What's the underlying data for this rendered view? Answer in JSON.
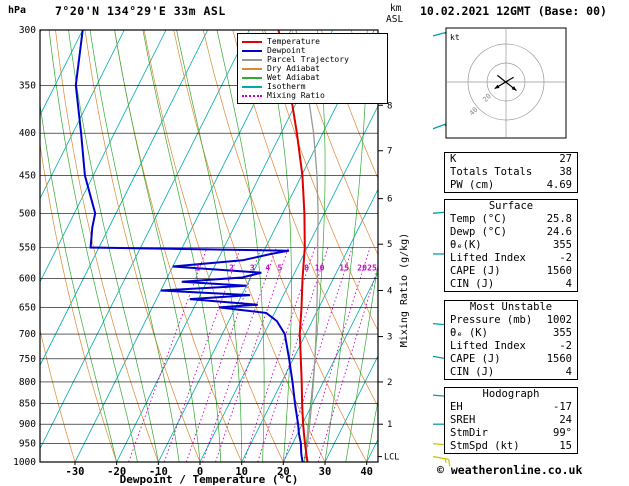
{
  "header": {
    "pressure_unit": "hPa",
    "station": "7°20'N 134°29'E 33m ASL",
    "altitude_km": "km",
    "altitude_asl": "ASL",
    "date": "10.02.2021 12GMT (Base: 00)"
  },
  "axis": {
    "x_title": "Dewpoint / Temperature (°C)",
    "right_title": "Mixing Ratio (g/kg)",
    "lcl_label": "LCL"
  },
  "colors": {
    "temperature": "#dd0000",
    "dewpoint": "#0000cc",
    "parcel": "#999999",
    "dry_adiabat": "#dd8833",
    "wet_adiabat": "#33aa33",
    "isotherm": "#00aaaa",
    "mixing_ratio": "#cc00cc",
    "barb_upper": "#00a0a0",
    "barb_lower": "#c8c800",
    "grid": "#000000"
  },
  "legend": [
    {
      "label": "Temperature",
      "color": "temperature",
      "dashed": false
    },
    {
      "label": "Dewpoint",
      "color": "dewpoint",
      "dashed": false
    },
    {
      "label": "Parcel Trajectory",
      "color": "parcel",
      "dashed": false
    },
    {
      "label": "Dry Adiabat",
      "color": "dry_adiabat",
      "dashed": false
    },
    {
      "label": "Wet Adiabat",
      "color": "wet_adiabat",
      "dashed": false
    },
    {
      "label": "Isotherm",
      "color": "isotherm",
      "dashed": false
    },
    {
      "label": "Mixing Ratio",
      "color": "mixing_ratio",
      "dashed": true
    }
  ],
  "chart_data": {
    "type": "line",
    "title": "Skew-T log-P sounding",
    "x_axis": {
      "label": "Dewpoint / Temperature (°C)",
      "ticks": [
        -30,
        -20,
        -10,
        0,
        10,
        20,
        30,
        40
      ],
      "range": [
        -40,
        43
      ]
    },
    "y_axis": {
      "label": "hPa",
      "scale": "log",
      "range": [
        300,
        1000
      ],
      "ticks": [
        300,
        350,
        400,
        450,
        500,
        550,
        600,
        650,
        700,
        750,
        800,
        850,
        900,
        950,
        1000
      ]
    },
    "km_ticks": [
      {
        "km": 1,
        "p": 900
      },
      {
        "km": 2,
        "p": 800
      },
      {
        "km": 3,
        "p": 705
      },
      {
        "km": 4,
        "p": 620
      },
      {
        "km": 5,
        "p": 545
      },
      {
        "km": 6,
        "p": 480
      },
      {
        "km": 7,
        "p": 420
      },
      {
        "km": 8,
        "p": 370
      }
    ],
    "mixing_ratio_lines": [
      1,
      2,
      3,
      4,
      5,
      8,
      10,
      15,
      20,
      25
    ],
    "lcl_pressure": 985,
    "series": [
      {
        "name": "Parcel Trajectory",
        "color": "parcel",
        "width": 1.3,
        "points": [
          [
            1000,
            25.8
          ],
          [
            985,
            24.6
          ],
          [
            950,
            23.6
          ],
          [
            900,
            21.8
          ],
          [
            850,
            19.8
          ],
          [
            800,
            17.6
          ],
          [
            750,
            15.2
          ],
          [
            700,
            12.5
          ],
          [
            650,
            9.5
          ],
          [
            600,
            6.2
          ],
          [
            550,
            2.5
          ],
          [
            500,
            -1.5
          ],
          [
            450,
            -6.3
          ],
          [
            400,
            -12.2
          ],
          [
            350,
            -19.6
          ],
          [
            300,
            -28.8
          ]
        ]
      },
      {
        "name": "Temperature",
        "color": "temperature",
        "width": 2,
        "points": [
          [
            1000,
            25.8
          ],
          [
            975,
            24.4
          ],
          [
            950,
            23.0
          ],
          [
            925,
            21.6
          ],
          [
            900,
            20.2
          ],
          [
            850,
            17.5
          ],
          [
            800,
            14.8
          ],
          [
            750,
            11.8
          ],
          [
            700,
            8.6
          ],
          [
            650,
            5.8
          ],
          [
            600,
            2.6
          ],
          [
            550,
            -0.6
          ],
          [
            500,
            -4.8
          ],
          [
            450,
            -9.8
          ],
          [
            400,
            -16.2
          ],
          [
            350,
            -23.8
          ],
          [
            300,
            -33.0
          ]
        ]
      },
      {
        "name": "Dewpoint",
        "color": "dewpoint",
        "width": 2,
        "points": [
          [
            1000,
            24.6
          ],
          [
            975,
            23.2
          ],
          [
            950,
            22.0
          ],
          [
            925,
            20.4
          ],
          [
            900,
            19.0
          ],
          [
            850,
            15.8
          ],
          [
            800,
            12.6
          ],
          [
            750,
            9.0
          ],
          [
            700,
            5.0
          ],
          [
            675,
            1.5
          ],
          [
            660,
            -2.0
          ],
          [
            650,
            -14.0
          ],
          [
            645,
            -5.0
          ],
          [
            635,
            -22.0
          ],
          [
            628,
            -8.0
          ],
          [
            620,
            -30.0
          ],
          [
            612,
            -10.0
          ],
          [
            605,
            -26.0
          ],
          [
            598,
            -12.0
          ],
          [
            590,
            -8.0
          ],
          [
            580,
            -30.0
          ],
          [
            570,
            -14.0
          ],
          [
            560,
            -8.0
          ],
          [
            555,
            -4.0
          ],
          [
            550,
            -52.0
          ],
          [
            520,
            -54.0
          ],
          [
            500,
            -55.0
          ],
          [
            450,
            -62.0
          ],
          [
            400,
            -68.0
          ],
          [
            350,
            -75.0
          ],
          [
            300,
            -80.0
          ]
        ]
      }
    ],
    "wind_barbs": [
      {
        "p": 305,
        "dir": 75,
        "spd": 20,
        "c": "upper"
      },
      {
        "p": 395,
        "dir": 70,
        "spd": 15,
        "c": "upper"
      },
      {
        "p": 500,
        "dir": 85,
        "spd": 10,
        "c": "upper"
      },
      {
        "p": 560,
        "dir": 90,
        "spd": 10,
        "c": "upper"
      },
      {
        "p": 680,
        "dir": 95,
        "spd": 10,
        "c": "upper"
      },
      {
        "p": 745,
        "dir": 100,
        "spd": 10,
        "c": "upper"
      },
      {
        "p": 830,
        "dir": 95,
        "spd": 15,
        "c": "upper"
      },
      {
        "p": 900,
        "dir": 90,
        "spd": 15,
        "c": "upper"
      },
      {
        "p": 950,
        "dir": 95,
        "spd": 10,
        "c": "lower"
      },
      {
        "p": 985,
        "dir": 100,
        "spd": 15,
        "c": "lower"
      }
    ],
    "hodograph": {
      "unit": "kt",
      "rings": [
        20,
        40
      ],
      "ring_labels": [
        "20",
        "40"
      ],
      "arrows": [
        {
          "from": [
            -9,
            7
          ],
          "to": [
            11,
            -9
          ]
        },
        {
          "from": [
            8,
            5
          ],
          "to": [
            -12,
            -7
          ]
        }
      ]
    }
  },
  "tables": [
    {
      "name": "indices",
      "header": null,
      "rows": [
        [
          "K",
          "27"
        ],
        [
          "Totals Totals",
          "38"
        ],
        [
          "PW (cm)",
          "4.69"
        ]
      ]
    },
    {
      "name": "surface",
      "header": "Surface",
      "rows": [
        [
          "Temp (°C)",
          "25.8"
        ],
        [
          "Dewp (°C)",
          "24.6"
        ],
        [
          "θₑ(K)",
          "355"
        ],
        [
          "Lifted Index",
          "-2"
        ],
        [
          "CAPE (J)",
          "1560"
        ],
        [
          "CIN (J)",
          "4"
        ]
      ]
    },
    {
      "name": "most-unstable",
      "header": "Most Unstable",
      "rows": [
        [
          "Pressure (mb)",
          "1002"
        ],
        [
          "θₑ (K)",
          "355"
        ],
        [
          "Lifted Index",
          "-2"
        ],
        [
          "CAPE (J)",
          "1560"
        ],
        [
          "CIN (J)",
          "4"
        ]
      ]
    },
    {
      "name": "hodograph",
      "header": "Hodograph",
      "rows": [
        [
          "EH",
          "-17"
        ],
        [
          "SREH",
          "24"
        ],
        [
          "StmDir",
          "99°"
        ],
        [
          "StmSpd (kt)",
          "15"
        ]
      ]
    }
  ],
  "copyright": "© weatheronline.co.uk"
}
